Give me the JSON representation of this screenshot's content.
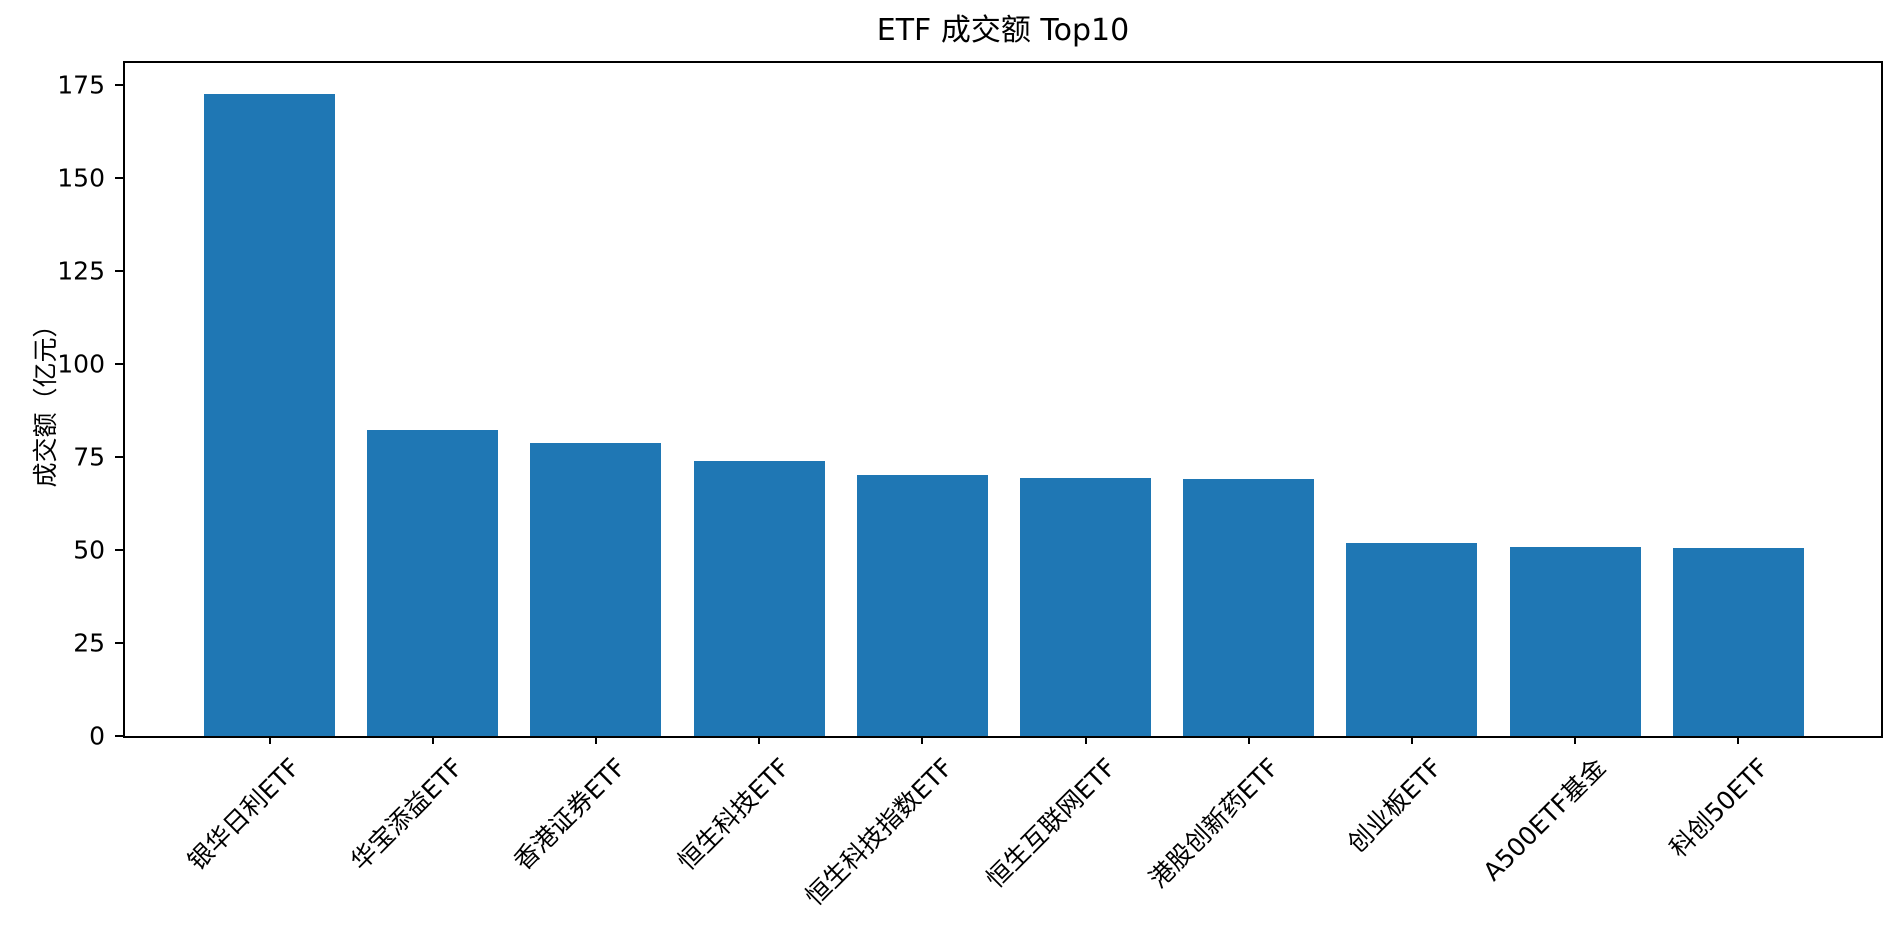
{
  "chart_data": {
    "type": "bar",
    "title": "ETF 成交额 Top10",
    "xlabel": "",
    "ylabel": "成交额（亿元）",
    "categories": [
      "银华日利ETF",
      "华宝添益ETF",
      "香港证券ETF",
      "恒生科技ETF",
      "恒生科技指数ETF",
      "恒生互联网ETF",
      "港股创新药ETF",
      "创业板ETF",
      "A500ETF基金",
      "科创50ETF"
    ],
    "values": [
      172.8,
      82.2,
      78.8,
      73.9,
      70.2,
      69.5,
      69.0,
      51.8,
      50.9,
      50.5
    ],
    "yticks": [
      0,
      25,
      50,
      75,
      100,
      125,
      150,
      175
    ],
    "ylim": [
      0,
      181
    ],
    "grid": false,
    "legend_position": "none",
    "bar_color": "#1f77b4",
    "axis_color": "#000000",
    "text_color": "#000000",
    "x_label_rotation_deg": 45
  }
}
